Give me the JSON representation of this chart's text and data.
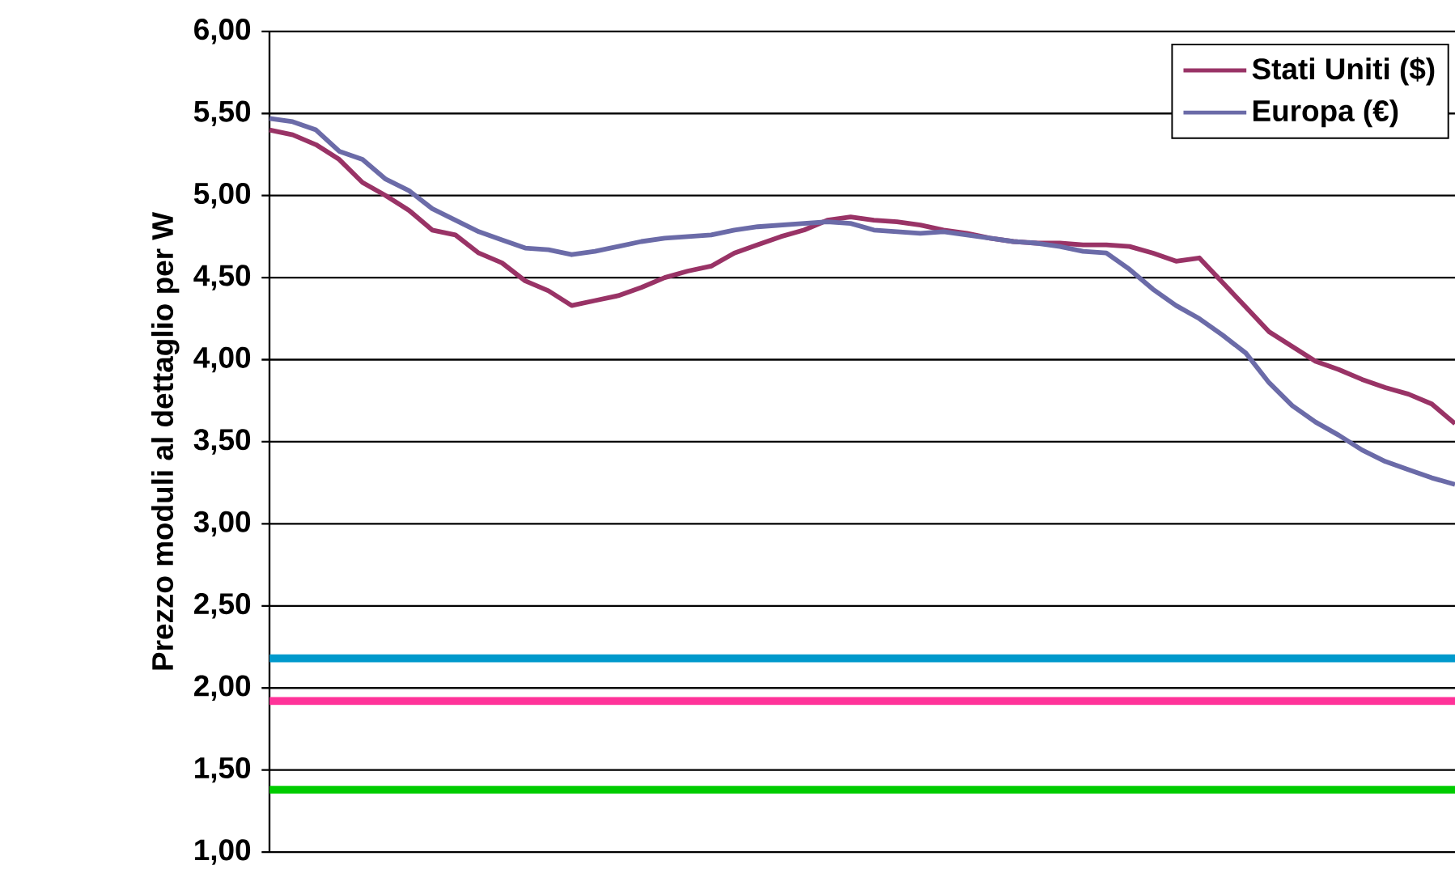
{
  "chart_data": {
    "type": "line",
    "ylabel": "Prezzo moduli al dettaglio per W",
    "categories": [
      null,
      null,
      null,
      null,
      null,
      null,
      null,
      null,
      null,
      null,
      null,
      null,
      null,
      null,
      null,
      null,
      null,
      null,
      null,
      null,
      null,
      null,
      null,
      null,
      null,
      null,
      null,
      null,
      null,
      null,
      null,
      null,
      null,
      null,
      null,
      null,
      null,
      null,
      null,
      null,
      null,
      null,
      null,
      null,
      null,
      null,
      null,
      null,
      null,
      null,
      null,
      null
    ],
    "series": [
      {
        "name": "Stati Uniti ($)",
        "color": "#993366",
        "values": [
          5.4,
          5.37,
          5.31,
          5.22,
          5.08,
          5.0,
          4.91,
          4.79,
          4.76,
          4.65,
          4.59,
          4.48,
          4.42,
          4.33,
          4.36,
          4.39,
          4.44,
          4.5,
          4.54,
          4.57,
          4.65,
          4.7,
          4.75,
          4.79,
          4.85,
          4.87,
          4.85,
          4.84,
          4.82,
          4.79,
          4.77,
          4.74,
          4.72,
          4.71,
          4.71,
          4.7,
          4.7,
          4.69,
          4.65,
          4.6,
          4.62,
          4.47,
          4.32,
          4.17,
          4.08,
          3.99,
          3.94,
          3.88,
          3.83,
          3.79,
          3.73,
          3.61
        ]
      },
      {
        "name": "Europa (€)",
        "color": "#6b6ba8",
        "values": [
          5.47,
          5.45,
          5.4,
          5.27,
          5.22,
          5.1,
          5.03,
          4.92,
          4.85,
          4.78,
          4.73,
          4.68,
          4.67,
          4.64,
          4.66,
          4.69,
          4.72,
          4.74,
          4.75,
          4.76,
          4.79,
          4.81,
          4.82,
          4.83,
          4.84,
          4.83,
          4.79,
          4.78,
          4.77,
          4.78,
          4.76,
          4.74,
          4.72,
          4.71,
          4.69,
          4.66,
          4.65,
          4.55,
          4.43,
          4.33,
          4.25,
          4.15,
          4.04,
          3.86,
          3.72,
          3.62,
          3.54,
          3.45,
          3.38,
          3.33,
          3.28,
          3.24
        ]
      }
    ],
    "ylim": [
      1,
      6
    ],
    "yticks": [
      {
        "value": 1,
        "label": "1,00"
      },
      {
        "value": 1.5,
        "label": "1,50"
      },
      {
        "value": 2,
        "label": "2,00"
      },
      {
        "value": 2.5,
        "label": "2,50"
      },
      {
        "value": 3,
        "label": "3,00"
      },
      {
        "value": 3.5,
        "label": "3,50"
      },
      {
        "value": 4,
        "label": "4,00"
      },
      {
        "value": 4.5,
        "label": "4,50"
      },
      {
        "value": 5,
        "label": "5,00"
      },
      {
        "value": 5.5,
        "label": "5,50"
      },
      {
        "value": 6,
        "label": "6,00"
      }
    ],
    "ref_lines": [
      {
        "axis": "y",
        "value": 2.18,
        "color": "#0099cc"
      },
      {
        "axis": "y",
        "value": 1.92,
        "color": "#ff3399"
      },
      {
        "axis": "y",
        "value": 1.38,
        "color": "#00cc00"
      }
    ],
    "grid": "y",
    "legend": "top right",
    "marker": "none",
    "line_style": "solid"
  }
}
